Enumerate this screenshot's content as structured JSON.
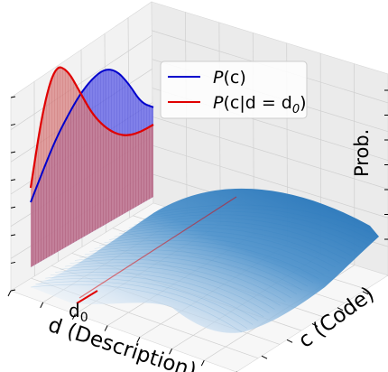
{
  "chart_data": {
    "type": "surface3d",
    "title": "",
    "xlabel": "d (Description)",
    "ylabel": "c (Code)",
    "zlabel": "Prob.",
    "x_tick_label": "d₀",
    "grid": true,
    "legend_position": "top-right",
    "colors": {
      "surface": "#2f7fc1",
      "marginal": "#0000cc",
      "conditional": "#e00000",
      "marginal_fill": "#4a4ae0",
      "conditional_fill": "#e07a6a"
    },
    "series": [
      {
        "name": "P(c)",
        "role": "marginal",
        "color": "#0000cc",
        "x": [
          0,
          0.1,
          0.2,
          0.3,
          0.4,
          0.5,
          0.6,
          0.7,
          0.8,
          0.9,
          1.0
        ],
        "y": [
          0.45,
          0.62,
          0.78,
          0.9,
          1.0,
          1.06,
          1.08,
          1.02,
          0.88,
          0.7,
          0.62
        ]
      },
      {
        "name": "P(c|d = d_0)",
        "role": "conditional",
        "color": "#e00000",
        "x": [
          0,
          0.1,
          0.2,
          0.3,
          0.4,
          0.5,
          0.6,
          0.7,
          0.8,
          0.9,
          1.0
        ],
        "y": [
          0.55,
          1.05,
          1.3,
          1.22,
          1.02,
          0.82,
          0.68,
          0.58,
          0.52,
          0.5,
          0.5
        ]
      }
    ]
  },
  "legend": {
    "items": [
      {
        "label_main": "P",
        "label_rest": "(c)",
        "color": "#0000cc"
      },
      {
        "label_main": "P",
        "label_rest": "(c|d = d",
        "sub": "0",
        "close": ")",
        "color": "#e00000"
      }
    ]
  },
  "axes": {
    "x_label": "d (Description)",
    "y_label": "c (Code)",
    "z_label": "Prob.",
    "x_tick": "d",
    "x_tick_sub": "0"
  }
}
